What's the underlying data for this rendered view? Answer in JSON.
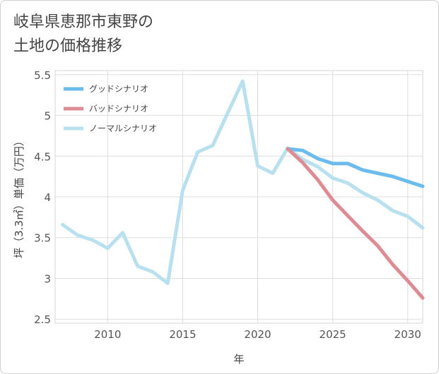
{
  "chart_data": {
    "type": "line",
    "title_lines": [
      "岐阜県恵那市東野の",
      "土地の価格推移"
    ],
    "xlabel": "年",
    "ylabel": "坪（3.3㎡）単価（万円）",
    "xlim": [
      2006.5,
      2031
    ],
    "ylim": [
      2.45,
      5.55
    ],
    "x_ticks": [
      2010,
      2015,
      2020,
      2025,
      2030
    ],
    "y_ticks": [
      2.5,
      3,
      3.5,
      4,
      4.5,
      5,
      5.5
    ],
    "y_tick_labels": [
      "2.5",
      "3",
      "3.5",
      "4",
      "4.5",
      "5",
      "5.5"
    ],
    "grid": true,
    "legend_position": "top-left",
    "series": [
      {
        "name": "グッドシナリオ",
        "color": "#6bbcec",
        "x": [
          2022,
          2023,
          2024,
          2025,
          2026,
          2027,
          2028,
          2029,
          2030,
          2031
        ],
        "y": [
          4.59,
          4.57,
          4.47,
          4.41,
          4.41,
          4.33,
          4.29,
          4.25,
          4.19,
          4.13
        ]
      },
      {
        "name": "バッドシナリオ",
        "color": "#de8c93",
        "x": [
          2022,
          2023,
          2024,
          2025,
          2026,
          2027,
          2028,
          2029,
          2030,
          2031
        ],
        "y": [
          4.59,
          4.42,
          4.21,
          3.96,
          3.77,
          3.58,
          3.4,
          3.17,
          2.97,
          2.76
        ]
      },
      {
        "name": "ノーマルシナリオ",
        "color": "#b9e0ee",
        "x": [
          2007,
          2008,
          2009,
          2010,
          2011,
          2012,
          2013,
          2014,
          2015,
          2016,
          2017,
          2018,
          2019,
          2020,
          2021,
          2022,
          2023,
          2024,
          2025,
          2026,
          2027,
          2028,
          2029,
          2030,
          2031
        ],
        "y": [
          3.66,
          3.53,
          3.47,
          3.37,
          3.56,
          3.15,
          3.08,
          2.94,
          4.08,
          4.55,
          4.63,
          5.03,
          5.42,
          4.38,
          4.29,
          4.6,
          4.46,
          4.37,
          4.23,
          4.17,
          4.05,
          3.96,
          3.83,
          3.76,
          3.62
        ]
      }
    ]
  }
}
